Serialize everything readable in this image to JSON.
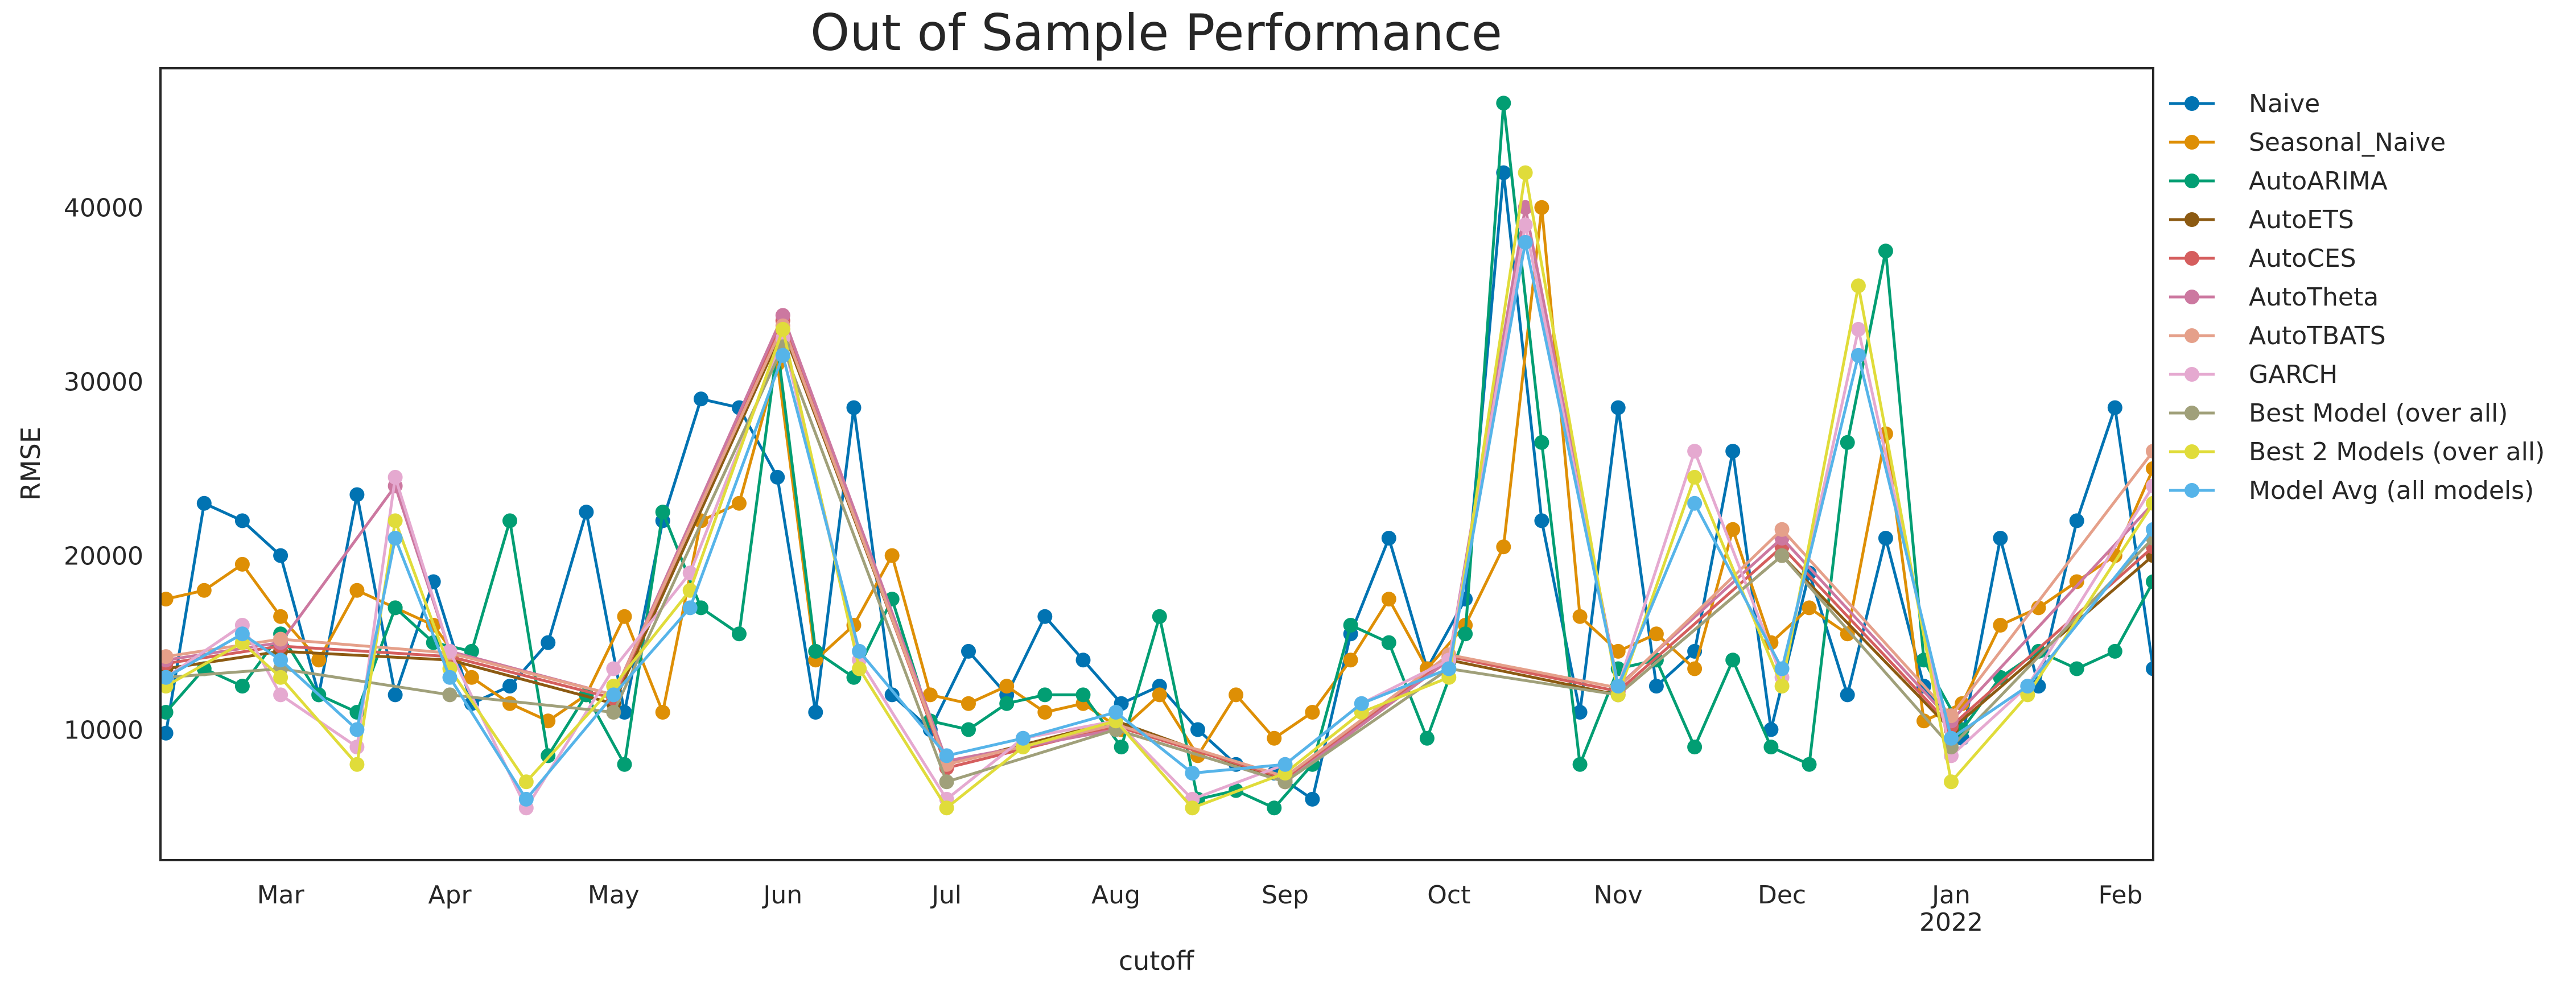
{
  "chart_data": {
    "type": "line",
    "title": "Out of Sample Performance",
    "xlabel": "cutoff",
    "ylabel": "RMSE",
    "x_start": "2021-02-07",
    "x_end": "2022-02-07",
    "ylim": [
      2500,
      48000
    ],
    "grid": false,
    "legend_position": "outside-right",
    "x_ticks": [
      {
        "date": "2021-03-01",
        "label": "Mar"
      },
      {
        "date": "2021-04-01",
        "label": "Apr"
      },
      {
        "date": "2021-05-01",
        "label": "May"
      },
      {
        "date": "2021-06-01",
        "label": "Jun"
      },
      {
        "date": "2021-07-01",
        "label": "Jul"
      },
      {
        "date": "2021-08-01",
        "label": "Aug"
      },
      {
        "date": "2021-09-01",
        "label": "Sep"
      },
      {
        "date": "2021-10-01",
        "label": "Oct"
      },
      {
        "date": "2021-11-01",
        "label": "Nov"
      },
      {
        "date": "2021-12-01",
        "label": "Dec"
      },
      {
        "date": "2022-01-01",
        "label": "Jan",
        "sublabel": "2022"
      },
      {
        "date": "2022-02-01",
        "label": "Feb"
      }
    ],
    "y_ticks": [
      10000,
      20000,
      30000,
      40000
    ],
    "series": [
      {
        "name": "Naive",
        "color": "#0173b2",
        "dates": [
          "2021-02-08",
          "2021-02-15",
          "2021-02-22",
          "2021-03-01",
          "2021-03-08",
          "2021-03-15",
          "2021-03-22",
          "2021-03-29",
          "2021-04-05",
          "2021-04-12",
          "2021-04-19",
          "2021-04-26",
          "2021-05-03",
          "2021-05-10",
          "2021-05-17",
          "2021-05-24",
          "2021-05-31",
          "2021-06-07",
          "2021-06-14",
          "2021-06-21",
          "2021-06-28",
          "2021-07-05",
          "2021-07-12",
          "2021-07-19",
          "2021-07-26",
          "2021-08-02",
          "2021-08-09",
          "2021-08-16",
          "2021-08-23",
          "2021-08-30",
          "2021-09-06",
          "2021-09-13",
          "2021-09-20",
          "2021-09-27",
          "2021-10-04",
          "2021-10-11",
          "2021-10-18",
          "2021-10-25",
          "2021-11-01",
          "2021-11-08",
          "2021-11-15",
          "2021-11-22",
          "2021-11-29",
          "2021-12-06",
          "2021-12-13",
          "2021-12-20",
          "2021-12-27",
          "2022-01-03",
          "2022-01-10",
          "2022-01-17",
          "2022-01-24",
          "2022-01-31",
          "2022-02-07"
        ],
        "values": [
          9800,
          23000,
          22000,
          20000,
          12000,
          23500,
          12000,
          18500,
          11500,
          12500,
          15000,
          22500,
          11000,
          22000,
          29000,
          28500,
          24500,
          11000,
          28500,
          12000,
          10000,
          14500,
          12000,
          16500,
          14000,
          11500,
          12500,
          10000,
          8000,
          7500,
          6000,
          15500,
          21000,
          13500,
          17500,
          42000,
          22000,
          11000,
          28500,
          12500,
          14500,
          26000,
          10000,
          19000,
          12000,
          21000,
          12500,
          9500,
          21000,
          12500,
          22000,
          28500,
          13500
        ]
      },
      {
        "name": "Seasonal_Naive",
        "color": "#de8f05",
        "dates": [
          "2021-02-08",
          "2021-02-15",
          "2021-02-22",
          "2021-03-01",
          "2021-03-08",
          "2021-03-15",
          "2021-03-22",
          "2021-03-29",
          "2021-04-05",
          "2021-04-12",
          "2021-04-19",
          "2021-04-26",
          "2021-05-03",
          "2021-05-10",
          "2021-05-17",
          "2021-05-24",
          "2021-05-31",
          "2021-06-07",
          "2021-06-14",
          "2021-06-21",
          "2021-06-28",
          "2021-07-05",
          "2021-07-12",
          "2021-07-19",
          "2021-07-26",
          "2021-08-02",
          "2021-08-09",
          "2021-08-16",
          "2021-08-23",
          "2021-08-30",
          "2021-09-06",
          "2021-09-13",
          "2021-09-20",
          "2021-09-27",
          "2021-10-04",
          "2021-10-11",
          "2021-10-18",
          "2021-10-25",
          "2021-11-01",
          "2021-11-08",
          "2021-11-15",
          "2021-11-22",
          "2021-11-29",
          "2021-12-06",
          "2021-12-13",
          "2021-12-20",
          "2021-12-27",
          "2022-01-03",
          "2022-01-10",
          "2022-01-17",
          "2022-01-24",
          "2022-01-31",
          "2022-02-07"
        ],
        "values": [
          17500,
          18000,
          19500,
          16500,
          14000,
          18000,
          17000,
          16000,
          13000,
          11500,
          10500,
          12000,
          16500,
          11000,
          22000,
          23000,
          31000,
          14000,
          16000,
          20000,
          12000,
          11500,
          12500,
          11000,
          11500,
          10000,
          12000,
          8500,
          12000,
          9500,
          11000,
          14000,
          17500,
          13500,
          16000,
          20500,
          40000,
          16500,
          14500,
          15500,
          13500,
          21500,
          15000,
          17000,
          15500,
          27000,
          10500,
          11500,
          16000,
          17000,
          18500,
          20000,
          25000
        ]
      },
      {
        "name": "AutoARIMA",
        "color": "#029e73",
        "dates": [
          "2021-02-08",
          "2021-02-15",
          "2021-02-22",
          "2021-03-01",
          "2021-03-08",
          "2021-03-15",
          "2021-03-22",
          "2021-03-29",
          "2021-04-05",
          "2021-04-12",
          "2021-04-19",
          "2021-04-26",
          "2021-05-03",
          "2021-05-10",
          "2021-05-17",
          "2021-05-24",
          "2021-05-31",
          "2021-06-07",
          "2021-06-14",
          "2021-06-21",
          "2021-06-28",
          "2021-07-05",
          "2021-07-12",
          "2021-07-19",
          "2021-07-26",
          "2021-08-02",
          "2021-08-09",
          "2021-08-16",
          "2021-08-23",
          "2021-08-30",
          "2021-09-06",
          "2021-09-13",
          "2021-09-20",
          "2021-09-27",
          "2021-10-04",
          "2021-10-11",
          "2021-10-18",
          "2021-10-25",
          "2021-11-01",
          "2021-11-08",
          "2021-11-15",
          "2021-11-22",
          "2021-11-29",
          "2021-12-06",
          "2021-12-13",
          "2021-12-20",
          "2021-12-27",
          "2022-01-03",
          "2022-01-10",
          "2022-01-17",
          "2022-01-24",
          "2022-01-31",
          "2022-02-07"
        ],
        "values": [
          11000,
          13500,
          12500,
          15500,
          12000,
          11000,
          17000,
          15000,
          14500,
          22000,
          8500,
          12000,
          8000,
          22500,
          17000,
          15500,
          32000,
          14500,
          13000,
          17500,
          10500,
          10000,
          11500,
          12000,
          12000,
          9000,
          16500,
          6000,
          6500,
          5500,
          8000,
          16000,
          15000,
          9500,
          15500,
          46000,
          26500,
          8000,
          13500,
          14000,
          9000,
          14000,
          9000,
          8000,
          26500,
          37500,
          14000,
          10000,
          13000,
          14500,
          13500,
          14500,
          18500
        ]
      },
      {
        "name": "AutoETS",
        "color": "#8c5a12",
        "dates": [
          "2021-02-08",
          "2021-03-01",
          "2021-04-01",
          "2021-05-01",
          "2021-06-01",
          "2021-07-01",
          "2021-08-01",
          "2021-09-01",
          "2021-10-01",
          "2021-11-01",
          "2021-12-01",
          "2022-01-01",
          "2022-02-07"
        ],
        "values": [
          13500,
          14500,
          14000,
          11500,
          33000,
          8000,
          10500,
          7000,
          14000,
          12000,
          20000,
          10000,
          20000
        ]
      },
      {
        "name": "AutoCES",
        "color": "#d55e5e",
        "dates": [
          "2021-02-08",
          "2021-03-01",
          "2021-04-01",
          "2021-05-01",
          "2021-06-01",
          "2021-07-01",
          "2021-08-01",
          "2021-09-01",
          "2021-10-01",
          "2021-11-01",
          "2021-12-01",
          "2022-01-01",
          "2022-02-07"
        ],
        "values": [
          13800,
          14800,
          14200,
          11800,
          33500,
          7800,
          10200,
          7200,
          14200,
          12200,
          20500,
          10200,
          20500
        ]
      },
      {
        "name": "AutoTheta",
        "color": "#cc78a0",
        "dates": [
          "2021-02-08",
          "2021-03-01",
          "2021-03-22",
          "2021-04-01",
          "2021-05-01",
          "2021-06-01",
          "2021-07-01",
          "2021-08-01",
          "2021-09-01",
          "2021-10-01",
          "2021-10-15",
          "2021-11-01",
          "2021-12-01",
          "2022-01-01",
          "2022-02-07"
        ],
        "values": [
          14000,
          15000,
          24000,
          14500,
          12000,
          33800,
          8200,
          10000,
          7000,
          14000,
          40000,
          12500,
          21000,
          10500,
          23000
        ]
      },
      {
        "name": "AutoTBATS",
        "color": "#e5a08a",
        "dates": [
          "2021-02-08",
          "2021-03-01",
          "2021-04-01",
          "2021-05-01",
          "2021-06-01",
          "2021-07-01",
          "2021-08-01",
          "2021-09-01",
          "2021-10-01",
          "2021-11-01",
          "2021-12-01",
          "2022-01-01",
          "2022-02-07"
        ],
        "values": [
          14200,
          15200,
          14400,
          12000,
          33200,
          8000,
          10300,
          7300,
          14300,
          12400,
          21500,
          10800,
          26000
        ]
      },
      {
        "name": "GARCH",
        "color": "#e5a9d0",
        "dates": [
          "2021-02-08",
          "2021-02-22",
          "2021-03-01",
          "2021-03-15",
          "2021-03-22",
          "2021-04-01",
          "2021-04-15",
          "2021-05-01",
          "2021-05-15",
          "2021-06-01",
          "2021-06-15",
          "2021-07-01",
          "2021-07-15",
          "2021-08-01",
          "2021-08-15",
          "2021-09-01",
          "2021-09-15",
          "2021-10-01",
          "2021-10-15",
          "2021-11-01",
          "2021-11-15",
          "2021-12-01",
          "2021-12-15",
          "2022-01-01",
          "2022-01-15",
          "2022-02-07"
        ],
        "values": [
          13000,
          16000,
          12000,
          9000,
          24500,
          14500,
          5500,
          13500,
          19000,
          32500,
          14000,
          6000,
          9500,
          10500,
          6000,
          8000,
          11500,
          14000,
          39000,
          12500,
          26000,
          13000,
          33000,
          8500,
          12500,
          24000
        ]
      },
      {
        "name": "Best Model (over all)",
        "color": "#a0a07a",
        "dates": [
          "2021-02-08",
          "2021-03-01",
          "2021-04-01",
          "2021-05-01",
          "2021-06-01",
          "2021-07-01",
          "2021-08-01",
          "2021-09-01",
          "2021-10-01",
          "2021-11-01",
          "2021-12-01",
          "2022-01-01",
          "2022-02-07"
        ],
        "values": [
          13000,
          13500,
          12000,
          11000,
          32000,
          7000,
          10000,
          7000,
          13500,
          12000,
          20000,
          9000,
          21000
        ]
      },
      {
        "name": "Best 2 Models (over all)",
        "color": "#e0dc3a",
        "dates": [
          "2021-02-08",
          "2021-02-22",
          "2021-03-01",
          "2021-03-15",
          "2021-03-22",
          "2021-04-01",
          "2021-04-15",
          "2021-05-01",
          "2021-05-15",
          "2021-06-01",
          "2021-06-15",
          "2021-07-01",
          "2021-07-15",
          "2021-08-01",
          "2021-08-15",
          "2021-09-01",
          "2021-09-15",
          "2021-10-01",
          "2021-10-15",
          "2021-11-01",
          "2021-11-15",
          "2021-12-01",
          "2021-12-15",
          "2022-01-01",
          "2022-01-15",
          "2022-02-07"
        ],
        "values": [
          12500,
          15000,
          13000,
          8000,
          22000,
          13500,
          7000,
          12500,
          18000,
          33000,
          13500,
          5500,
          9000,
          10500,
          5500,
          7500,
          11000,
          13000,
          42000,
          12000,
          24500,
          12500,
          35500,
          7000,
          12000,
          23000
        ]
      },
      {
        "name": "Model Avg (all models)",
        "color": "#56b4e9",
        "dates": [
          "2021-02-08",
          "2021-02-22",
          "2021-03-01",
          "2021-03-15",
          "2021-03-22",
          "2021-04-01",
          "2021-04-15",
          "2021-05-01",
          "2021-05-15",
          "2021-06-01",
          "2021-06-15",
          "2021-07-01",
          "2021-07-15",
          "2021-08-01",
          "2021-08-15",
          "2021-09-01",
          "2021-09-15",
          "2021-10-01",
          "2021-10-15",
          "2021-11-01",
          "2021-11-15",
          "2021-12-01",
          "2021-12-15",
          "2022-01-01",
          "2022-01-15",
          "2022-02-07"
        ],
        "values": [
          13000,
          15500,
          14000,
          10000,
          21000,
          13000,
          6000,
          12000,
          17000,
          31500,
          14500,
          8500,
          9500,
          11000,
          7500,
          8000,
          11500,
          13500,
          38000,
          12500,
          23000,
          13500,
          31500,
          9500,
          12500,
          21500
        ]
      }
    ]
  }
}
